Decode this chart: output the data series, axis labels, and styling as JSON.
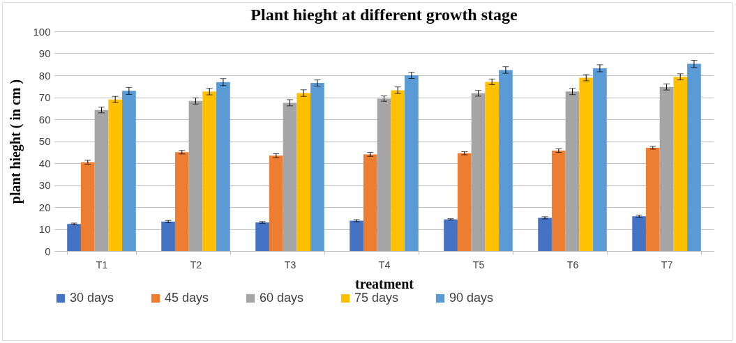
{
  "chart_data": {
    "type": "bar",
    "title": "Plant hieght at different growth stage",
    "xlabel": "treatment",
    "ylabel": "plant hieght ( in cm )",
    "categories": [
      "T1",
      "T2",
      "T3",
      "T4",
      "T5",
      "T6",
      "T7"
    ],
    "series": [
      {
        "name": "30 days",
        "color": "#4472c4",
        "values": [
          12.3,
          13.4,
          13.0,
          13.8,
          14.4,
          15.1,
          15.8
        ],
        "errors": [
          0.4,
          0.5,
          0.4,
          0.5,
          0.3,
          0.5,
          0.5
        ]
      },
      {
        "name": "45 days",
        "color": "#ed7d31",
        "values": [
          40.4,
          45.0,
          43.4,
          44.0,
          44.5,
          45.7,
          47.0
        ],
        "errors": [
          0.9,
          0.8,
          0.9,
          0.9,
          0.7,
          0.8,
          0.6
        ]
      },
      {
        "name": "60 days",
        "color": "#a5a5a5",
        "values": [
          64.2,
          68.3,
          67.5,
          69.4,
          71.8,
          72.6,
          74.7
        ],
        "errors": [
          1.3,
          1.4,
          1.4,
          1.2,
          1.3,
          1.4,
          1.4
        ]
      },
      {
        "name": "75 days",
        "color": "#ffc000",
        "values": [
          69.0,
          72.6,
          71.9,
          73.2,
          77.0,
          78.9,
          79.3
        ],
        "errors": [
          1.4,
          1.5,
          1.5,
          1.5,
          1.3,
          1.4,
          1.4
        ]
      },
      {
        "name": "90 days",
        "color": "#5b9bd5",
        "values": [
          72.9,
          76.9,
          76.5,
          80.0,
          82.4,
          83.2,
          85.2
        ],
        "errors": [
          1.6,
          1.6,
          1.4,
          1.4,
          1.5,
          1.6,
          1.6
        ]
      }
    ],
    "ylim": [
      0,
      100
    ],
    "yticks": [
      0,
      10,
      20,
      30,
      40,
      50,
      60,
      70,
      80,
      90,
      100
    ],
    "grid": "y",
    "legend": "bottom"
  }
}
